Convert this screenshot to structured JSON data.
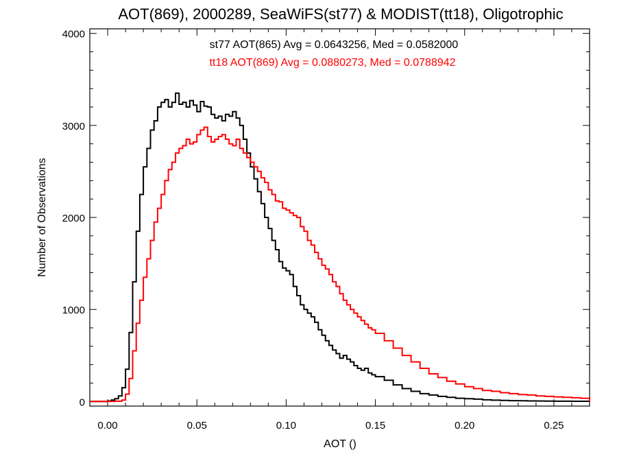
{
  "chart_data": {
    "type": "line",
    "title": "AOT(869), 2000289, SeaWiFS(st77) & MODIST(tt18), Oligotrophic",
    "xlabel": "AOT ()",
    "ylabel": "Number of Observations",
    "xlim": [
      -0.01,
      0.27
    ],
    "ylim": [
      -50,
      4050
    ],
    "x_ticks": [
      0.0,
      0.05,
      0.1,
      0.15,
      0.2,
      0.25
    ],
    "x_tick_labels": [
      "0.00",
      "0.05",
      "0.10",
      "0.15",
      "0.20",
      "0.25"
    ],
    "y_ticks": [
      0,
      1000,
      2000,
      3000,
      4000
    ],
    "y_tick_labels": [
      "0",
      "1000",
      "2000",
      "3000",
      "4000"
    ],
    "grid": false,
    "line_style": "step",
    "annotations": [
      {
        "text": "st77 AOT(865) Avg = 0.0643256, Med = 0.0582000",
        "color": "#000000"
      },
      {
        "text": "tt18 AOT(869) Avg = 0.0880273, Med = 0.0788942",
        "color": "#ff0000"
      }
    ],
    "series": [
      {
        "color": "#000000",
        "x": [
          -0.01,
          0.0,
          0.002,
          0.004,
          0.006,
          0.008,
          0.01,
          0.012,
          0.014,
          0.016,
          0.018,
          0.02,
          0.022,
          0.024,
          0.026,
          0.028,
          0.03,
          0.032,
          0.034,
          0.036,
          0.038,
          0.04,
          0.042,
          0.044,
          0.046,
          0.048,
          0.05,
          0.052,
          0.054,
          0.056,
          0.058,
          0.06,
          0.062,
          0.064,
          0.066,
          0.068,
          0.07,
          0.072,
          0.074,
          0.076,
          0.078,
          0.08,
          0.082,
          0.084,
          0.086,
          0.088,
          0.09,
          0.092,
          0.094,
          0.096,
          0.098,
          0.1,
          0.102,
          0.104,
          0.106,
          0.108,
          0.11,
          0.112,
          0.114,
          0.116,
          0.118,
          0.12,
          0.122,
          0.124,
          0.126,
          0.128,
          0.13,
          0.132,
          0.134,
          0.136,
          0.138,
          0.14,
          0.142,
          0.144,
          0.146,
          0.148,
          0.15,
          0.155,
          0.16,
          0.165,
          0.17,
          0.175,
          0.18,
          0.185,
          0.19,
          0.195,
          0.2,
          0.205,
          0.21,
          0.215,
          0.22,
          0.225,
          0.23,
          0.235,
          0.24,
          0.245,
          0.25,
          0.255,
          0.26,
          0.265,
          0.27
        ],
        "values": [
          0,
          5,
          15,
          30,
          60,
          150,
          350,
          750,
          1300,
          1850,
          2250,
          2550,
          2750,
          2950,
          3050,
          3200,
          3250,
          3280,
          3200,
          3250,
          3350,
          3230,
          3250,
          3200,
          3270,
          3220,
          3150,
          3260,
          3210,
          3200,
          3120,
          3080,
          3100,
          3050,
          3120,
          3100,
          3150,
          3080,
          3000,
          2850,
          2700,
          2550,
          2420,
          2280,
          2150,
          2000,
          1880,
          1750,
          1650,
          1520,
          1450,
          1420,
          1380,
          1250,
          1150,
          1050,
          1000,
          960,
          920,
          860,
          780,
          720,
          660,
          610,
          560,
          520,
          470,
          500,
          460,
          430,
          390,
          360,
          340,
          360,
          310,
          290,
          270,
          230,
          180,
          140,
          110,
          85,
          70,
          55,
          45,
          35,
          30,
          25,
          18,
          14,
          12,
          9,
          8,
          6,
          5,
          4,
          3,
          3,
          2,
          2,
          0
        ]
      },
      {
        "color": "#ff0000",
        "x": [
          -0.01,
          0.0,
          0.004,
          0.008,
          0.01,
          0.012,
          0.014,
          0.016,
          0.018,
          0.02,
          0.022,
          0.024,
          0.026,
          0.028,
          0.03,
          0.032,
          0.034,
          0.036,
          0.038,
          0.04,
          0.042,
          0.044,
          0.046,
          0.048,
          0.05,
          0.052,
          0.054,
          0.056,
          0.058,
          0.06,
          0.062,
          0.064,
          0.066,
          0.068,
          0.07,
          0.072,
          0.074,
          0.076,
          0.078,
          0.08,
          0.082,
          0.084,
          0.086,
          0.088,
          0.09,
          0.092,
          0.094,
          0.096,
          0.098,
          0.1,
          0.102,
          0.104,
          0.106,
          0.108,
          0.11,
          0.112,
          0.114,
          0.116,
          0.118,
          0.12,
          0.122,
          0.124,
          0.126,
          0.128,
          0.13,
          0.132,
          0.134,
          0.136,
          0.138,
          0.14,
          0.142,
          0.144,
          0.146,
          0.148,
          0.15,
          0.155,
          0.16,
          0.165,
          0.17,
          0.175,
          0.18,
          0.185,
          0.19,
          0.195,
          0.2,
          0.205,
          0.21,
          0.215,
          0.22,
          0.225,
          0.23,
          0.235,
          0.24,
          0.245,
          0.25,
          0.255,
          0.26,
          0.265,
          0.27
        ],
        "values": [
          0,
          0,
          3,
          15,
          80,
          250,
          550,
          850,
          1100,
          1350,
          1550,
          1750,
          1950,
          2100,
          2250,
          2400,
          2520,
          2600,
          2700,
          2750,
          2780,
          2850,
          2800,
          2820,
          2900,
          2950,
          2980,
          2880,
          2820,
          2850,
          2880,
          2900,
          2850,
          2800,
          2780,
          2850,
          2750,
          2700,
          2650,
          2600,
          2550,
          2500,
          2430,
          2380,
          2300,
          2250,
          2180,
          2170,
          2100,
          2080,
          2050,
          2020,
          2000,
          1900,
          1850,
          1750,
          1700,
          1620,
          1550,
          1480,
          1440,
          1380,
          1300,
          1250,
          1170,
          1100,
          1050,
          1000,
          960,
          920,
          880,
          840,
          800,
          780,
          740,
          660,
          580,
          500,
          430,
          360,
          300,
          260,
          220,
          190,
          160,
          140,
          120,
          110,
          95,
          85,
          75,
          70,
          60,
          55,
          50,
          45,
          40,
          35,
          0
        ]
      }
    ]
  }
}
